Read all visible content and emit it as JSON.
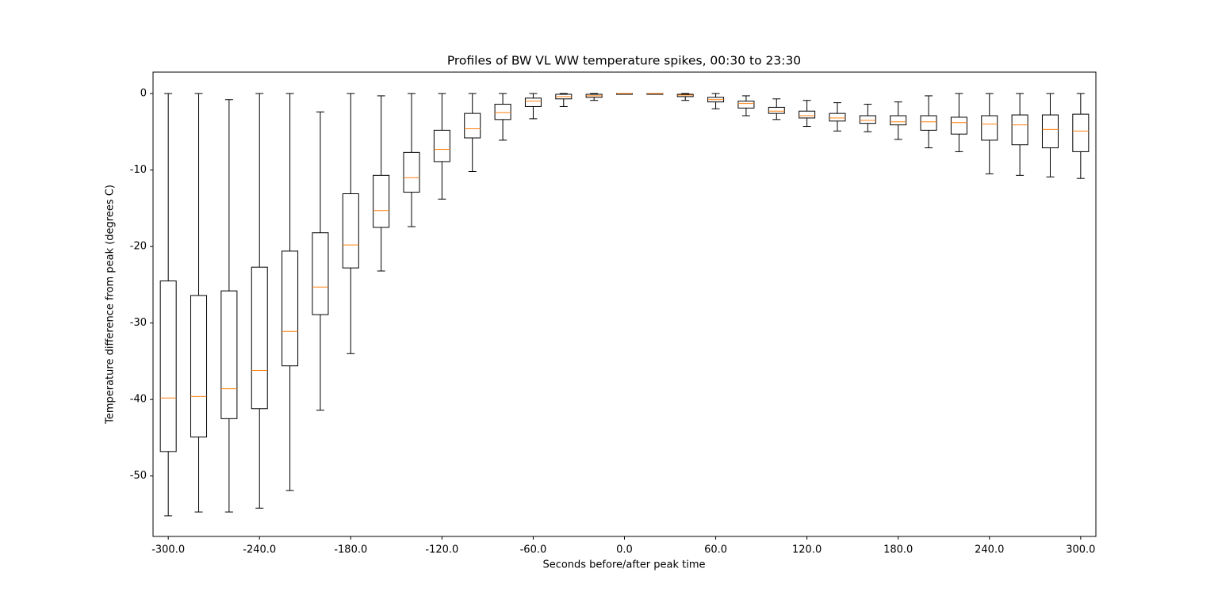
{
  "chart_data": {
    "type": "box",
    "title": "Profiles of BW VL WW temperature spikes, 00:30 to 23:30",
    "xlabel": "Seconds before/after peak time",
    "ylabel": "Temperature difference from peak (degrees C)",
    "x": [
      -300,
      -280,
      -260,
      -240,
      -220,
      -200,
      -180,
      -160,
      -140,
      -120,
      -100,
      -80,
      -60,
      -40,
      -20,
      0,
      20,
      40,
      60,
      80,
      100,
      120,
      140,
      160,
      180,
      200,
      220,
      240,
      260,
      280,
      300
    ],
    "boxes": [
      {
        "low": -55.2,
        "q1": -46.8,
        "median": -39.8,
        "q3": -24.5,
        "high": 0
      },
      {
        "low": -54.7,
        "q1": -44.9,
        "median": -39.6,
        "q3": -26.4,
        "high": 0
      },
      {
        "low": -54.7,
        "q1": -42.5,
        "median": -38.6,
        "q3": -25.8,
        "high": -0.8
      },
      {
        "low": -54.2,
        "q1": -41.2,
        "median": -36.2,
        "q3": -22.7,
        "high": 0
      },
      {
        "low": -51.9,
        "q1": -35.6,
        "median": -31.1,
        "q3": -20.6,
        "high": 0
      },
      {
        "low": -41.4,
        "q1": -28.9,
        "median": -25.3,
        "q3": -18.2,
        "high": -2.4
      },
      {
        "low": -34.0,
        "q1": -22.8,
        "median": -19.8,
        "q3": -13.1,
        "high": 0
      },
      {
        "low": -23.2,
        "q1": -17.5,
        "median": -15.3,
        "q3": -10.7,
        "high": -0.3
      },
      {
        "low": -17.4,
        "q1": -12.9,
        "median": -11.0,
        "q3": -7.7,
        "high": 0
      },
      {
        "low": -13.8,
        "q1": -8.9,
        "median": -7.3,
        "q3": -4.8,
        "high": 0
      },
      {
        "low": -10.2,
        "q1": -5.8,
        "median": -4.6,
        "q3": -2.6,
        "high": 0
      },
      {
        "low": -6.1,
        "q1": -3.4,
        "median": -2.5,
        "q3": -1.4,
        "high": 0
      },
      {
        "low": -3.3,
        "q1": -1.7,
        "median": -1.0,
        "q3": -0.6,
        "high": 0
      },
      {
        "low": -1.7,
        "q1": -0.7,
        "median": -0.4,
        "q3": -0.1,
        "high": 0
      },
      {
        "low": -0.9,
        "q1": -0.5,
        "median": -0.3,
        "q3": -0.1,
        "high": 0
      },
      {
        "low": -0.1,
        "q1": -0.1,
        "median": 0,
        "q3": 0,
        "high": 0
      },
      {
        "low": -0.1,
        "q1": -0.1,
        "median": 0,
        "q3": 0,
        "high": 0
      },
      {
        "low": -0.9,
        "q1": -0.4,
        "median": -0.2,
        "q3": -0.1,
        "high": 0
      },
      {
        "low": -2.0,
        "q1": -1.1,
        "median": -0.8,
        "q3": -0.5,
        "high": 0
      },
      {
        "low": -2.9,
        "q1": -1.9,
        "median": -1.3,
        "q3": -1.0,
        "high": -0.3
      },
      {
        "low": -3.4,
        "q1": -2.6,
        "median": -2.3,
        "q3": -1.8,
        "high": -0.7
      },
      {
        "low": -4.3,
        "q1": -3.2,
        "median": -2.9,
        "q3": -2.3,
        "high": -0.9
      },
      {
        "low": -4.9,
        "q1": -3.6,
        "median": -3.2,
        "q3": -2.6,
        "high": -1.2
      },
      {
        "low": -5.0,
        "q1": -3.9,
        "median": -3.5,
        "q3": -2.9,
        "high": -1.4
      },
      {
        "low": -6.0,
        "q1": -4.1,
        "median": -3.7,
        "q3": -2.9,
        "high": -1.1
      },
      {
        "low": -7.1,
        "q1": -4.8,
        "median": -3.7,
        "q3": -2.9,
        "high": -0.3
      },
      {
        "low": -7.6,
        "q1": -5.3,
        "median": -3.8,
        "q3": -3.1,
        "high": 0
      },
      {
        "low": -10.5,
        "q1": -6.1,
        "median": -4.0,
        "q3": -2.9,
        "high": 0
      },
      {
        "low": -10.7,
        "q1": -6.7,
        "median": -4.1,
        "q3": -2.8,
        "high": 0
      },
      {
        "low": -10.9,
        "q1": -7.1,
        "median": -4.7,
        "q3": -2.8,
        "high": 0
      },
      {
        "low": -11.1,
        "q1": -7.6,
        "median": -4.9,
        "q3": -2.7,
        "high": 0
      }
    ],
    "box_color": "#000000",
    "median_color": "#ff7f0e",
    "xlim": [
      -310,
      310
    ],
    "xticks": [
      {
        "value": -300,
        "label": "-300.0"
      },
      {
        "value": -240,
        "label": "-240.0"
      },
      {
        "value": -180,
        "label": "-180.0"
      },
      {
        "value": -120,
        "label": "-120.0"
      },
      {
        "value": -60,
        "label": "-60.0"
      },
      {
        "value": 0,
        "label": "0.0"
      },
      {
        "value": 60,
        "label": "60.0"
      },
      {
        "value": 120,
        "label": "120.0"
      },
      {
        "value": 180,
        "label": "180.0"
      },
      {
        "value": 240,
        "label": "240.0"
      },
      {
        "value": 300,
        "label": "300.0"
      }
    ],
    "ylim": [
      -57.9,
      2.8
    ],
    "yticks": [
      0,
      -10,
      -20,
      -30,
      -40,
      -50
    ],
    "grid": false
  }
}
